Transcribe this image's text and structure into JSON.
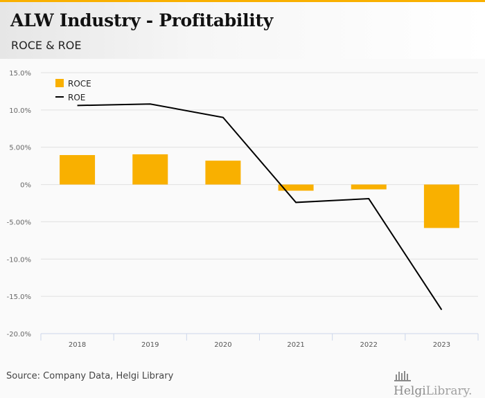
{
  "header": {
    "title": "ALW Industry - Profitability",
    "subtitle": "ROCE & ROE"
  },
  "footer": {
    "source": "Source: Company Data, Helgi Library",
    "logo_bold": "Helgi",
    "logo_light": "Library."
  },
  "colors": {
    "accent": "#f9b000",
    "roce": "#f9b000",
    "roe": "#000000",
    "grid": "#e0e0e0",
    "axis": "#ccd6eb"
  },
  "chart_data": {
    "type": "bar",
    "title": "ALW Industry - Profitability",
    "subtitle": "ROCE & ROE",
    "categories": [
      "2018",
      "2019",
      "2020",
      "2021",
      "2022",
      "2023"
    ],
    "series": [
      {
        "name": "ROCE",
        "type": "bar",
        "values": [
          3.95,
          4.05,
          3.2,
          -0.83,
          -0.65,
          -5.83
        ]
      },
      {
        "name": "ROE",
        "type": "line",
        "values": [
          10.6,
          10.8,
          9.0,
          -2.4,
          -1.9,
          -16.8
        ]
      }
    ],
    "yticks": [
      15,
      10,
      5,
      0,
      -5,
      -10,
      -15,
      -20
    ],
    "ytick_labels": [
      "15.0%",
      "10.0%",
      "5.00%",
      "0%",
      "-5.00%",
      "-10.0%",
      "-15.0%",
      "-20.0%"
    ],
    "ylim": [
      -20,
      15
    ],
    "xlabel": "",
    "ylabel": "",
    "grid": true,
    "legend": "top-left"
  }
}
